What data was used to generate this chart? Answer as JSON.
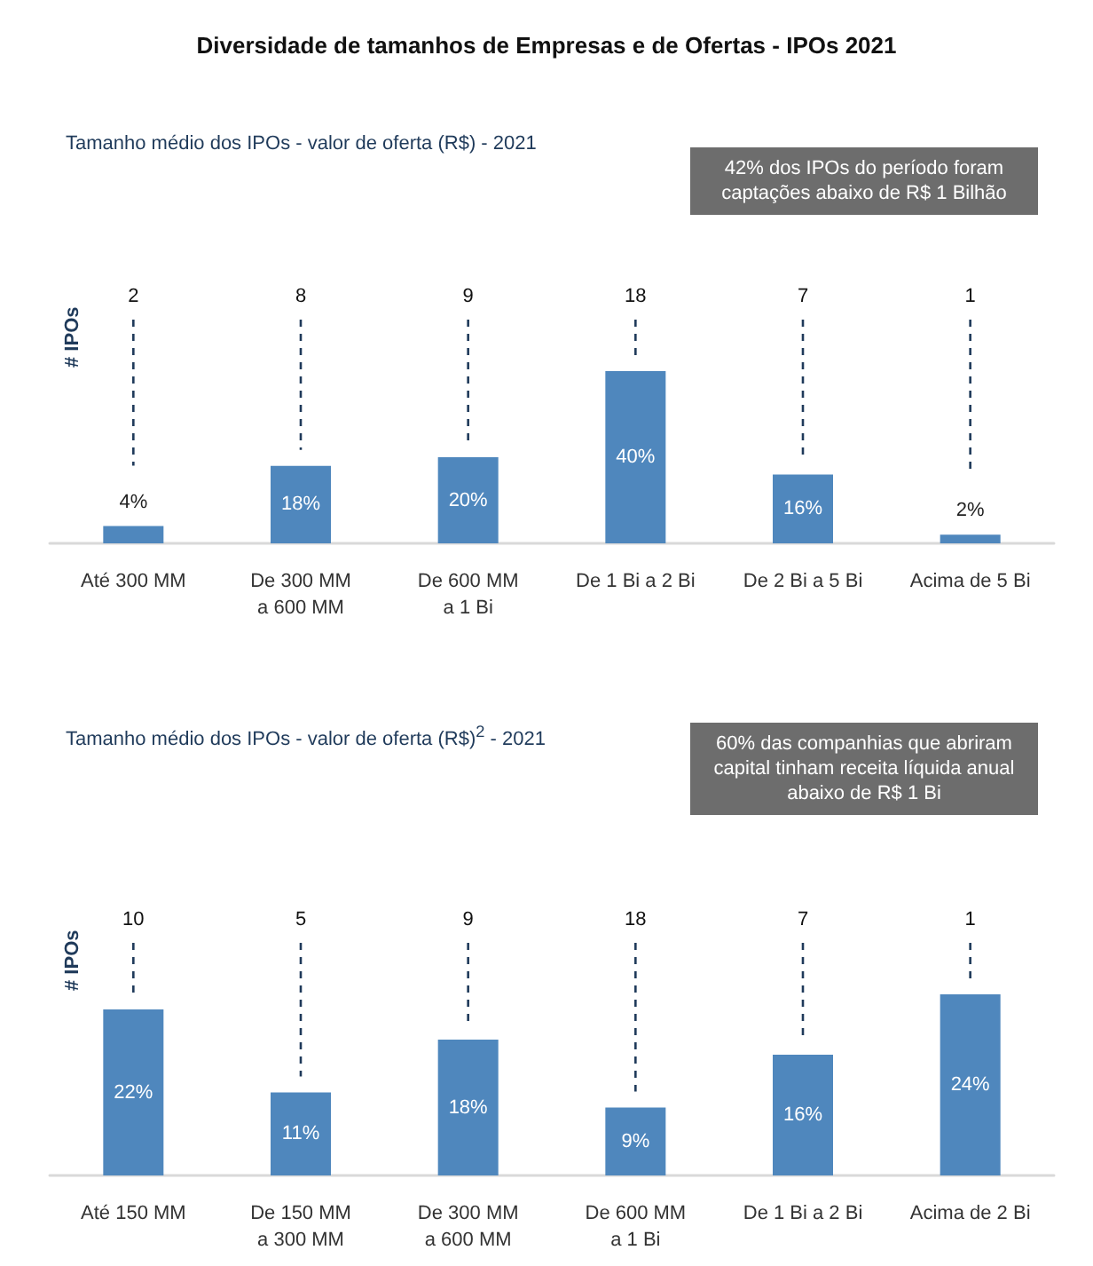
{
  "chart_data": [
    {
      "type": "bar",
      "title": "Diversidade de tamanhos de Empresas e de Ofertas - IPOs 2021",
      "subtitle": "Tamanho médio dos IPOs - valor de oferta (R$) - 2021",
      "ylabel": "# IPOs",
      "categories": [
        "Até 300 MM",
        "De 300 MM a 600 MM",
        "De 600 MM a 1 Bi",
        "De 1 Bi a 2 Bi",
        "De 2 Bi a 5 Bi",
        "Acima de 5 Bi"
      ],
      "values": [
        4,
        18,
        20,
        40,
        16,
        2
      ],
      "color": "#4f87bd",
      "data_labels": true,
      "value_labels": [
        "4%",
        "18%",
        "20%",
        "40%",
        "16%",
        "2%"
      ],
      "tick_labels": "x",
      "grid": "x",
      "annotations": [
        "42% dos IPOs do período foram captações abaixo de R$ 1 Bilhão",
        "2",
        "8",
        "9",
        "18",
        "7",
        "1"
      ]
    },
    {
      "type": "bar",
      "subtitle": "Tamanho médio dos IPOs - valor de oferta (R$)$^{2}$ - 2021",
      "ylabel": "# IPOs",
      "categories": [
        "Até 150 MM",
        "De 150 MM a 300 MM",
        "De 300 MM a 600 MM",
        "De 600 MM a 1 Bi",
        "De 1 Bi a 2 Bi",
        "Acima de 2 Bi"
      ],
      "values": [
        22,
        11,
        18,
        9,
        16,
        24
      ],
      "color": "#4f87bd",
      "data_labels": true,
      "value_labels": [
        "22%",
        "11%",
        "18%",
        "9%",
        "16%",
        "24%"
      ],
      "tick_labels": "x",
      "grid": "x",
      "annotations": [
        "60% das companhias que abriram capital tinham receita líquida anual abaixo de R$ 1 Bi",
        "10",
        "5",
        "9",
        "18",
        "7",
        "1"
      ]
    }
  ]
}
